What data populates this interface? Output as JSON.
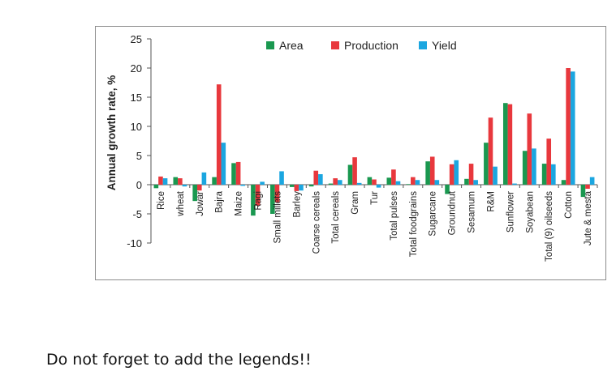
{
  "chart_data": {
    "type": "bar",
    "ylabel": "Annual growth rate, %",
    "ylim": [
      -10,
      25
    ],
    "yticks": [
      25,
      20,
      15,
      10,
      5,
      0,
      -5,
      -10
    ],
    "legend_position": "top-center",
    "categories": [
      "Rice",
      "wheat",
      "Jowar",
      "Bajra",
      "Maize",
      "Ragi",
      "Small millets",
      "Barley",
      "Coarse cereals",
      "Total cereals",
      "Gram",
      "Tur",
      "Total pulses",
      "Total foodgrains",
      "Sugarcane",
      "Groundnut",
      "Sesamum",
      "R&M",
      "Sunflower",
      "Soyabean",
      "Total (9) oilseeds",
      "Cotton",
      "Jute & mesta"
    ],
    "series": [
      {
        "name": "Area",
        "color": "#1a9850",
        "values": [
          -0.6,
          1.3,
          -2.8,
          1.3,
          3.7,
          -5.3,
          -5.0,
          -0.4,
          -0.3,
          0.2,
          3.4,
          1.3,
          1.2,
          0.1,
          4.0,
          -1.6,
          1.0,
          7.2,
          14.0,
          5.8,
          3.6,
          0.8,
          -2.1
        ]
      },
      {
        "name": "Production",
        "color": "#e8383d",
        "values": [
          1.4,
          1.1,
          -1.0,
          17.2,
          3.9,
          -3.6,
          -3.0,
          -1.1,
          2.4,
          1.1,
          4.7,
          0.9,
          2.6,
          1.3,
          4.8,
          3.5,
          3.6,
          11.5,
          13.8,
          12.2,
          7.9,
          20.0,
          -0.7
        ]
      },
      {
        "name": "Yield",
        "color": "#1ba6e0",
        "values": [
          1.1,
          -0.3,
          2.1,
          7.2,
          -0.2,
          0.5,
          2.3,
          -1.0,
          1.8,
          0.8,
          0.3,
          -0.5,
          0.6,
          0.8,
          0.8,
          4.2,
          0.8,
          3.1,
          0.2,
          6.2,
          3.5,
          19.4,
          1.3
        ]
      }
    ]
  },
  "note": "Do not forget to add the legends!!"
}
